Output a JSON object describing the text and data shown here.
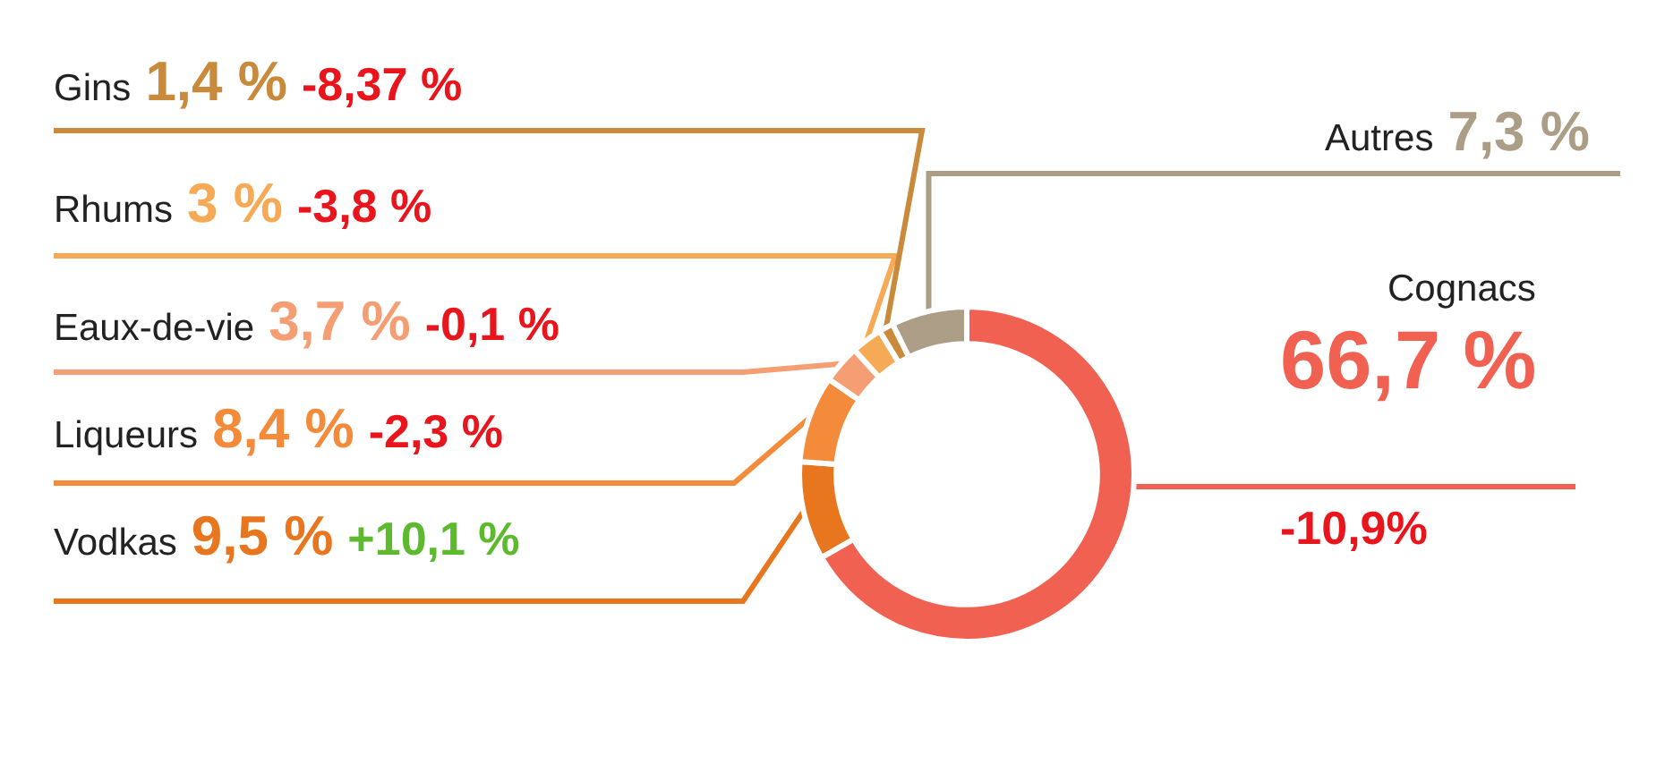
{
  "chart_data": {
    "type": "donut",
    "categories": [
      "Cognacs",
      "Vodkas",
      "Liqueurs",
      "Eaux-de-vie",
      "Rhums",
      "Gins",
      "Autres"
    ],
    "values": [
      66.7,
      9.5,
      8.4,
      3.7,
      3,
      1.4,
      7.3
    ],
    "colors": [
      "#f06152",
      "#e8761f",
      "#f38b3a",
      "#f59e73",
      "#f6aa55",
      "#c98a3b",
      "#ab9d86"
    ],
    "value_labels": [
      "66,7 %",
      "9,5 %",
      "8,4 %",
      "3,7 %",
      "3 %",
      "1,4 %",
      "7,3 %"
    ],
    "annotations": [
      "-10,9%",
      "+10,1 %",
      "-2,3 %",
      "-0,1 %",
      "-3,8 %",
      "-8,37 %",
      null
    ],
    "legend": false
  }
}
